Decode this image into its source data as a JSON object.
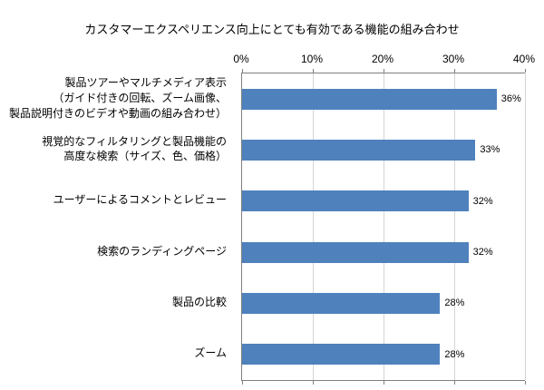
{
  "chart_data": {
    "type": "bar",
    "orientation": "horizontal",
    "title": "カスタマーエクスペリエンス向上にとても有効である機能の組み合わせ",
    "categories": [
      "製品ツアーやマルチメディア表示\n（ガイド付きの回転、ズーム画像、\n製品説明付きのビデオや動画の組み合わせ）",
      "視覚的なフィルタリングと製品機能の\n高度な検索（サイズ、色、価格）",
      "ユーザーによるコメントとレビュー",
      "検索のランディングページ",
      "製品の比較",
      "ズーム"
    ],
    "values": [
      36,
      33,
      32,
      32,
      28,
      28
    ],
    "value_labels": [
      "36%",
      "33%",
      "32%",
      "32%",
      "28%",
      "28%"
    ],
    "x_tick_labels": [
      "0%",
      "10%",
      "20%",
      "30%",
      "40%"
    ],
    "xlim": [
      0,
      40
    ],
    "xlabel": "",
    "ylabel": "",
    "bar_color": "#4F81BD",
    "grid": true,
    "legend": false
  }
}
